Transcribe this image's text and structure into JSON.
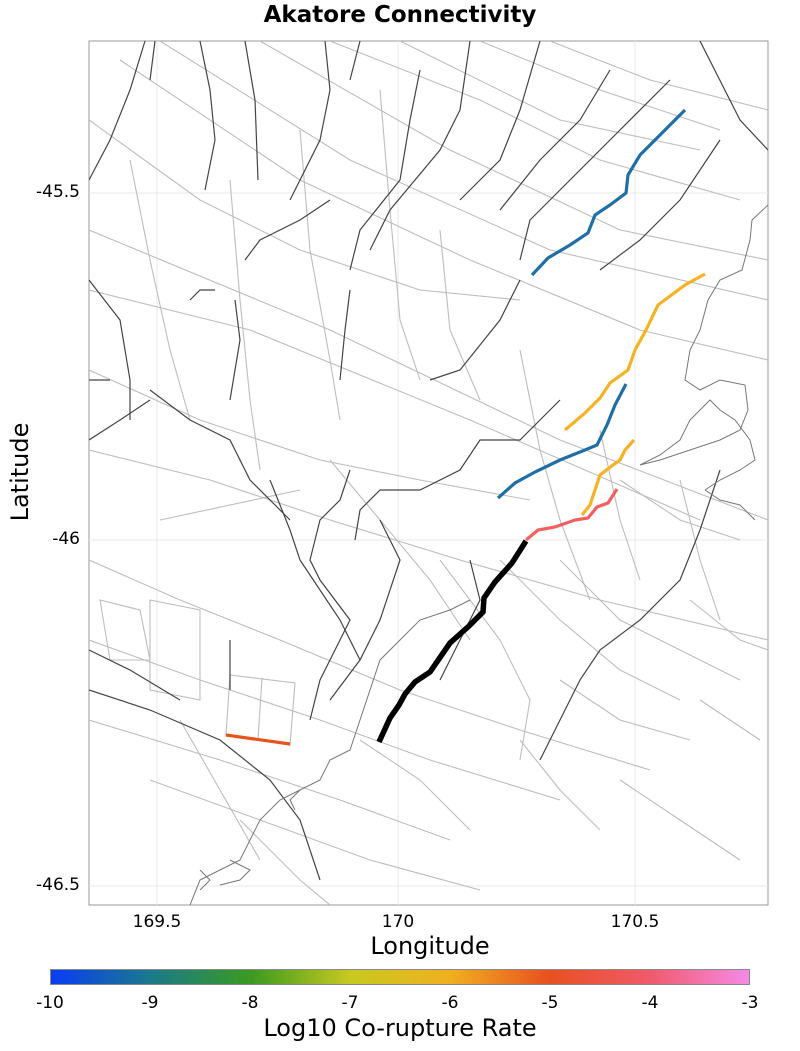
{
  "title": "Akatore Connectivity",
  "axes": {
    "xlabel": "Longitude",
    "ylabel": "Latitude",
    "xticks": [
      "169.5",
      "170",
      "170.5"
    ],
    "yticks": [
      "-45.5",
      "-46",
      "-46.5"
    ]
  },
  "colorbar": {
    "label": "Log10 Co-rupture Rate",
    "ticks": [
      "-10",
      "-9",
      "-8",
      "-7",
      "-6",
      "-5",
      "-4",
      "-3"
    ],
    "colors": [
      "#0a3cf5",
      "#1a7a8a",
      "#3a9a20",
      "#c8c820",
      "#f0b020",
      "#e85020",
      "#f05a6a",
      "#f58ae8"
    ]
  },
  "legend_colors": {
    "source_fault": "#000000",
    "rate_blue": "#1f6fa6",
    "rate_yellow": "#f5b324",
    "rate_red": "#f26060",
    "rate_orange": "#e8541c",
    "fault_trace": "#444444",
    "subsection_grid": "#bdbdbd",
    "coastline": "#777777"
  }
}
